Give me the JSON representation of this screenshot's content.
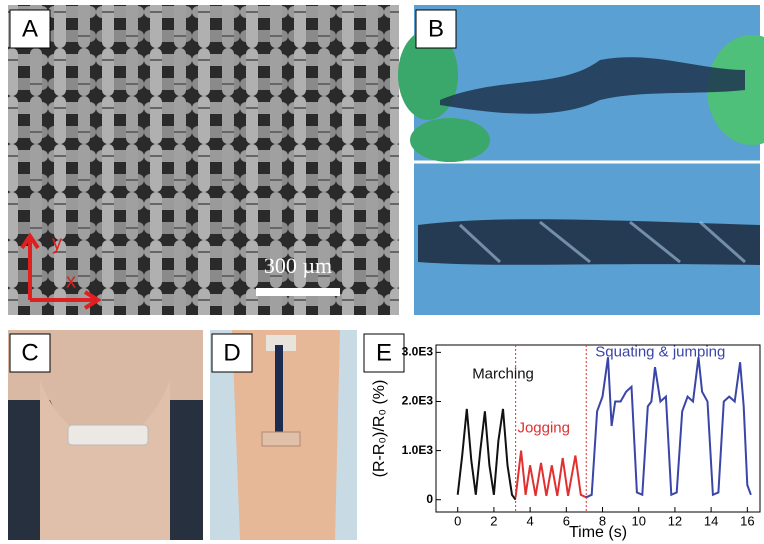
{
  "panels": {
    "A": {
      "label": "A",
      "scale_bar": "300 µm",
      "axis_y": "y",
      "axis_x": "x"
    },
    "B": {
      "label": "B"
    },
    "C": {
      "label": "C"
    },
    "D": {
      "label": "D"
    },
    "E": {
      "label": "E"
    }
  },
  "chart_data": {
    "type": "line",
    "x_label": "Time (s)",
    "y_label": "(R-R₀)/R₀ (%)",
    "xlim": [
      -1.2,
      16.7
    ],
    "ylim": [
      -250,
      3150
    ],
    "xticks": [
      0,
      2,
      4,
      6,
      8,
      10,
      12,
      14,
      16
    ],
    "yticks": [
      0,
      {
        "value": 1000,
        "label": "1.0E3"
      },
      {
        "value": 2000,
        "label": "2.0E3"
      },
      {
        "value": 3000,
        "label": "3.0E3"
      }
    ],
    "dividers": [
      3.2,
      7.1
    ],
    "divider_color": "#e03030",
    "series": [
      {
        "name": "Marching",
        "color": "#111111",
        "x": [
          0,
          0.25,
          0.5,
          0.75,
          1,
          1.25,
          1.5,
          1.75,
          2,
          2.25,
          2.5,
          2.75,
          3,
          3.2
        ],
        "values": [
          100,
          900,
          1850,
          800,
          100,
          1000,
          1800,
          700,
          100,
          1200,
          1850,
          700,
          100,
          0
        ]
      },
      {
        "name": "Jogging",
        "color": "#e03030",
        "x": [
          3.2,
          3.5,
          3.75,
          4.0,
          4.3,
          4.6,
          4.9,
          5.2,
          5.5,
          5.8,
          6.1,
          6.5,
          6.8,
          7.1
        ],
        "values": [
          50,
          1000,
          100,
          700,
          80,
          750,
          80,
          700,
          80,
          850,
          80,
          900,
          100,
          50
        ]
      },
      {
        "name": "Squating & jumping",
        "color": "#3a45a8",
        "x": [
          7.1,
          7.4,
          7.7,
          8.0,
          8.3,
          8.5,
          8.7,
          9.0,
          9.3,
          9.6,
          9.9,
          10.2,
          10.5,
          10.7,
          10.9,
          11.2,
          11.5,
          11.8,
          12.1,
          12.4,
          12.7,
          13.0,
          13.3,
          13.5,
          13.8,
          14.1,
          14.4,
          14.7,
          15.0,
          15.3,
          15.6,
          15.8,
          16.0,
          16.2
        ],
        "values": [
          50,
          100,
          1800,
          2100,
          2900,
          1500,
          2000,
          2000,
          2200,
          2300,
          150,
          100,
          1900,
          2000,
          2700,
          2000,
          2100,
          100,
          150,
          1800,
          2100,
          2000,
          2900,
          2200,
          2000,
          100,
          150,
          2000,
          2100,
          2000,
          2800,
          1900,
          300,
          100
        ]
      }
    ]
  }
}
